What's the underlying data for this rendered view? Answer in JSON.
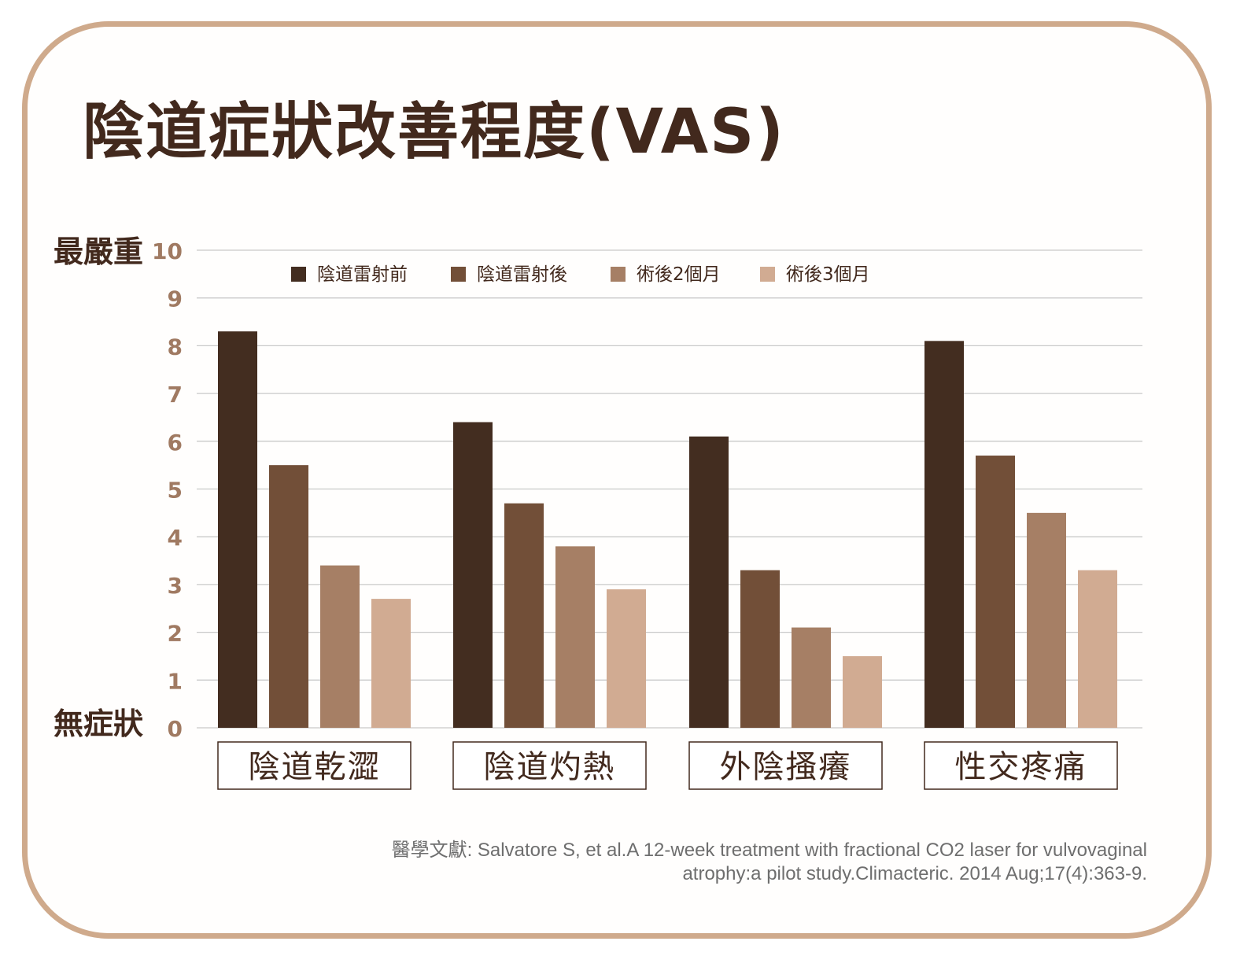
{
  "title": "陰道症狀改善程度(VAS)",
  "chart_data": {
    "type": "bar",
    "title": "陰道症狀改善程度(VAS)",
    "categories": [
      "陰道乾澀",
      "陰道灼熱",
      "外陰搔癢",
      "性交疼痛"
    ],
    "series": [
      {
        "name": "陰道雷射前",
        "color": "#432d20",
        "values": [
          8.3,
          6.4,
          6.1,
          8.1
        ]
      },
      {
        "name": "陰道雷射後",
        "color": "#724f38",
        "values": [
          5.5,
          4.7,
          3.3,
          5.7
        ]
      },
      {
        "name": "術後2個月",
        "color": "#a67f65",
        "values": [
          3.4,
          3.8,
          2.1,
          4.5
        ]
      },
      {
        "name": "術後3個月",
        "color": "#d1ab92",
        "values": [
          2.7,
          2.9,
          1.5,
          3.3
        ]
      }
    ],
    "ylim": [
      0,
      10
    ],
    "yticks": [
      "0",
      "1",
      "2",
      "3",
      "4",
      "5",
      "6",
      "7",
      "8",
      "9",
      "10"
    ],
    "ylabel_top": "最嚴重",
    "ylabel_bottom": "無症狀",
    "grid": true,
    "legend_position": "top"
  },
  "source": {
    "line1": "醫學文獻: Salvatore S, et al.A 12-week treatment with fractional CO2 laser for vulvovaginal",
    "line2": "atrophy:a pilot study.Climacteric. 2014 Aug;17(4):363-9."
  }
}
